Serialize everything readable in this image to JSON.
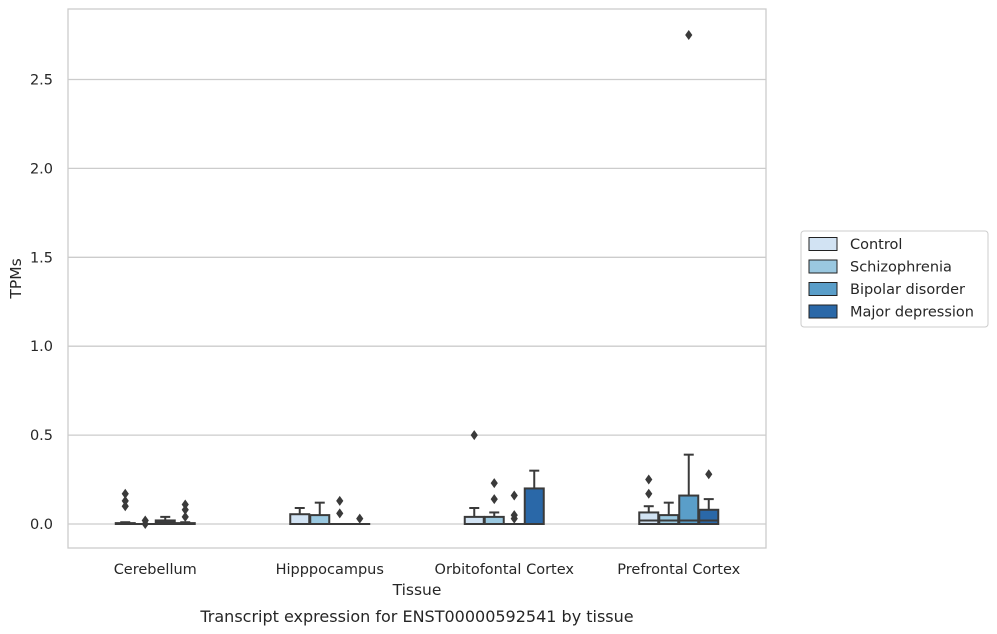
{
  "chart_data": {
    "type": "box",
    "title": "",
    "caption": "Transcript expression for ENST00000592541 by tissue",
    "xlabel": "Tissue",
    "ylabel": "TPMs",
    "ylim": [
      -0.13,
      2.9
    ],
    "yticks": [
      0.0,
      0.5,
      1.0,
      1.5,
      2.0,
      2.5
    ],
    "ytick_labels": [
      "0.0",
      "0.5",
      "1.0",
      "1.5",
      "2.0",
      "2.5"
    ],
    "grid": "horizontal",
    "legend_position": "right",
    "categories": [
      "Cerebellum",
      "Hipppocampus",
      "Orbitofontal Cortex",
      "Prefrontal Cortex"
    ],
    "series": [
      {
        "name": "Control",
        "color": "#d2e3f3",
        "boxes": [
          {
            "q1": 0.0,
            "median": 0.0,
            "q3": 0.005,
            "whisker_low": 0.0,
            "whisker_high": 0.01,
            "outliers": [
              0.1,
              0.13,
              0.17
            ]
          },
          {
            "q1": 0.0,
            "median": 0.0,
            "q3": 0.055,
            "whisker_low": 0.0,
            "whisker_high": 0.09,
            "outliers": []
          },
          {
            "q1": 0.0,
            "median": 0.0,
            "q3": 0.04,
            "whisker_low": 0.0,
            "whisker_high": 0.09,
            "outliers": [
              0.5
            ]
          },
          {
            "q1": 0.0,
            "median": 0.02,
            "q3": 0.065,
            "whisker_low": 0.0,
            "whisker_high": 0.1,
            "outliers": [
              0.17,
              0.25
            ]
          }
        ]
      },
      {
        "name": "Schizophrenia",
        "color": "#9ac8e0",
        "boxes": [
          {
            "q1": 0.0,
            "median": 0.0,
            "q3": 0.0,
            "whisker_low": 0.0,
            "whisker_high": 0.0,
            "outliers": [
              0.0,
              0.02
            ]
          },
          {
            "q1": 0.0,
            "median": 0.0,
            "q3": 0.05,
            "whisker_low": 0.0,
            "whisker_high": 0.12,
            "outliers": []
          },
          {
            "q1": 0.0,
            "median": 0.0,
            "q3": 0.04,
            "whisker_low": 0.0,
            "whisker_high": 0.065,
            "outliers": [
              0.14,
              0.23
            ]
          },
          {
            "q1": 0.0,
            "median": 0.02,
            "q3": 0.05,
            "whisker_low": 0.0,
            "whisker_high": 0.12,
            "outliers": []
          }
        ]
      },
      {
        "name": "Bipolar disorder",
        "color": "#5a9ec9",
        "boxes": [
          {
            "q1": 0.0,
            "median": 0.01,
            "q3": 0.02,
            "whisker_low": 0.0,
            "whisker_high": 0.04,
            "outliers": []
          },
          {
            "q1": 0.0,
            "median": 0.0,
            "q3": 0.0,
            "whisker_low": 0.0,
            "whisker_high": 0.0,
            "outliers": [
              0.06,
              0.13
            ]
          },
          {
            "q1": 0.0,
            "median": 0.0,
            "q3": 0.0,
            "whisker_low": 0.0,
            "whisker_high": 0.0,
            "outliers": [
              0.03,
              0.05,
              0.16
            ]
          },
          {
            "q1": 0.0,
            "median": 0.02,
            "q3": 0.16,
            "whisker_low": 0.0,
            "whisker_high": 0.39,
            "outliers": [
              2.75
            ]
          }
        ]
      },
      {
        "name": "Major depression",
        "color": "#2a68a8",
        "boxes": [
          {
            "q1": 0.0,
            "median": 0.0,
            "q3": 0.005,
            "whisker_low": 0.0,
            "whisker_high": 0.01,
            "outliers": [
              0.04,
              0.08,
              0.11
            ]
          },
          {
            "q1": 0.0,
            "median": 0.0,
            "q3": 0.0,
            "whisker_low": 0.0,
            "whisker_high": 0.0,
            "outliers": [
              0.03
            ]
          },
          {
            "q1": 0.0,
            "median": 0.0,
            "q3": 0.2,
            "whisker_low": 0.0,
            "whisker_high": 0.3,
            "outliers": []
          },
          {
            "q1": 0.0,
            "median": 0.02,
            "q3": 0.08,
            "whisker_low": 0.0,
            "whisker_high": 0.14,
            "outliers": [
              0.28
            ]
          }
        ]
      }
    ]
  },
  "colors": {
    "grid": "#cccccc",
    "frame": "#cccccc",
    "edge": "#3a3a3a"
  }
}
